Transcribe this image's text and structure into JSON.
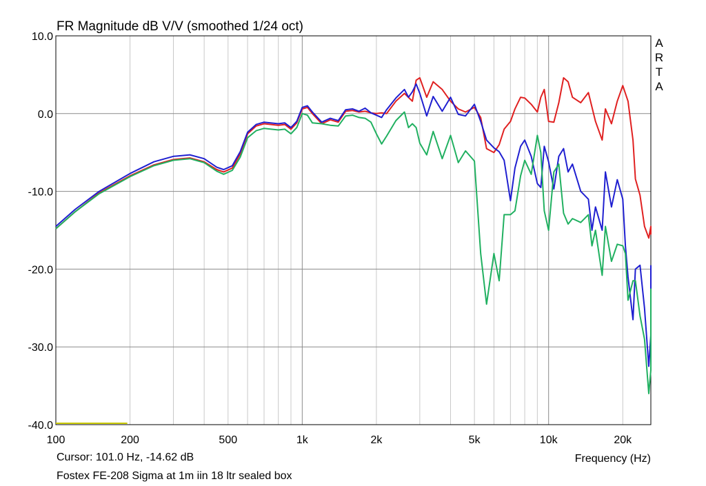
{
  "footer": {
    "cursor": "Cursor: 101.0 Hz, -14.62 dB",
    "description": "Fostex FE-208 Sigma at 1m iin 18 ltr sealed box"
  },
  "chart_data": {
    "type": "line",
    "title": "FR Magnitude dB V/V (smoothed 1/24 oct)",
    "xlabel": "Frequency (Hz)",
    "ylabel": "",
    "watermark": "ARTA",
    "xscale": "log",
    "xlim": [
      100,
      26000
    ],
    "ylim": [
      -40,
      10
    ],
    "grid": true,
    "xticks": [
      {
        "value": 100,
        "label": "100"
      },
      {
        "value": 200,
        "label": "200"
      },
      {
        "value": 500,
        "label": "500"
      },
      {
        "value": 1000,
        "label": "1k"
      },
      {
        "value": 2000,
        "label": "2k"
      },
      {
        "value": 5000,
        "label": "5k"
      },
      {
        "value": 10000,
        "label": "10k"
      },
      {
        "value": 20000,
        "label": "20k"
      }
    ],
    "yticks": [
      {
        "value": 10,
        "label": "10.0"
      },
      {
        "value": 0,
        "label": "0.0"
      },
      {
        "value": -10,
        "label": "-10.0"
      },
      {
        "value": -20,
        "label": "-20.0"
      },
      {
        "value": -30,
        "label": "-30.0"
      },
      {
        "value": -40,
        "label": "-40.0"
      }
    ],
    "cursor_line": {
      "color": "#c8c800",
      "x": [
        100,
        195
      ],
      "y": -40
    },
    "series": [
      {
        "color": "#e02020",
        "points": [
          [
            100,
            -14.8
          ],
          [
            120,
            -12.6
          ],
          [
            150,
            -10.2
          ],
          [
            200,
            -8
          ],
          [
            250,
            -6.6
          ],
          [
            300,
            -5.9
          ],
          [
            350,
            -5.7
          ],
          [
            400,
            -6.2
          ],
          [
            450,
            -7.2
          ],
          [
            480,
            -7.5
          ],
          [
            520,
            -7
          ],
          [
            560,
            -5.2
          ],
          [
            600,
            -2.6
          ],
          [
            650,
            -1.6
          ],
          [
            700,
            -1.3
          ],
          [
            800,
            -1.5
          ],
          [
            850,
            -1.4
          ],
          [
            900,
            -2
          ],
          [
            950,
            -1.2
          ],
          [
            1000,
            0.6
          ],
          [
            1050,
            0.8
          ],
          [
            1100,
            0
          ],
          [
            1200,
            -1.3
          ],
          [
            1300,
            -0.8
          ],
          [
            1400,
            -1.1
          ],
          [
            1500,
            0.3
          ],
          [
            1600,
            0.4
          ],
          [
            1700,
            0.2
          ],
          [
            1800,
            0.3
          ],
          [
            1900,
            0.1
          ],
          [
            2000,
            0
          ],
          [
            2100,
            0.1
          ],
          [
            2200,
            0
          ],
          [
            2400,
            1.6
          ],
          [
            2600,
            2.6
          ],
          [
            2800,
            1.6
          ],
          [
            2900,
            4.3
          ],
          [
            3000,
            4.6
          ],
          [
            3200,
            2.1
          ],
          [
            3400,
            4.1
          ],
          [
            3700,
            3.1
          ],
          [
            4000,
            1.6
          ],
          [
            4300,
            0.6
          ],
          [
            4600,
            0.2
          ],
          [
            5000,
            0.8
          ],
          [
            5300,
            -0.5
          ],
          [
            5600,
            -4.5
          ],
          [
            6000,
            -5
          ],
          [
            6300,
            -4
          ],
          [
            6600,
            -2
          ],
          [
            7000,
            -1
          ],
          [
            7300,
            0.6
          ],
          [
            7700,
            2.1
          ],
          [
            8000,
            2
          ],
          [
            8500,
            1.2
          ],
          [
            9000,
            0.2
          ],
          [
            9300,
            2.1
          ],
          [
            9600,
            3.1
          ],
          [
            10000,
            -1
          ],
          [
            10500,
            -1.1
          ],
          [
            11000,
            1.4
          ],
          [
            11500,
            4.6
          ],
          [
            12000,
            4.1
          ],
          [
            12500,
            2.1
          ],
          [
            13500,
            1.4
          ],
          [
            14500,
            2.7
          ],
          [
            15500,
            -1
          ],
          [
            16500,
            -3.4
          ],
          [
            17000,
            0.6
          ],
          [
            18000,
            -1.3
          ],
          [
            19000,
            1.6
          ],
          [
            20000,
            3.6
          ],
          [
            21000,
            1.6
          ],
          [
            22000,
            -3.4
          ],
          [
            22500,
            -8.4
          ],
          [
            23500,
            -10.5
          ],
          [
            24500,
            -14.5
          ],
          [
            25500,
            -16
          ],
          [
            26500,
            -14.5
          ],
          [
            27500,
            -15.5
          ],
          [
            28500,
            -14.5
          ],
          [
            29500,
            -15.5
          ],
          [
            30000,
            -15
          ]
        ]
      },
      {
        "color": "#1f1fd0",
        "points": [
          [
            100,
            -14.5
          ],
          [
            120,
            -12.3
          ],
          [
            150,
            -10
          ],
          [
            200,
            -7.7
          ],
          [
            250,
            -6.2
          ],
          [
            300,
            -5.5
          ],
          [
            350,
            -5.3
          ],
          [
            400,
            -5.8
          ],
          [
            450,
            -6.9
          ],
          [
            480,
            -7.2
          ],
          [
            520,
            -6.7
          ],
          [
            560,
            -4.9
          ],
          [
            600,
            -2.4
          ],
          [
            650,
            -1.4
          ],
          [
            700,
            -1.1
          ],
          [
            800,
            -1.3
          ],
          [
            850,
            -1.2
          ],
          [
            900,
            -1.8
          ],
          [
            950,
            -1
          ],
          [
            1000,
            0.8
          ],
          [
            1050,
            1
          ],
          [
            1100,
            0.2
          ],
          [
            1200,
            -1.1
          ],
          [
            1300,
            -0.6
          ],
          [
            1400,
            -0.9
          ],
          [
            1500,
            0.5
          ],
          [
            1600,
            0.6
          ],
          [
            1700,
            0.3
          ],
          [
            1800,
            0.7
          ],
          [
            1900,
            0.1
          ],
          [
            2000,
            -0.2
          ],
          [
            2100,
            -0.5
          ],
          [
            2200,
            0.5
          ],
          [
            2400,
            2
          ],
          [
            2600,
            3.1
          ],
          [
            2700,
            2.1
          ],
          [
            2800,
            2.8
          ],
          [
            2900,
            3.8
          ],
          [
            3000,
            2.6
          ],
          [
            3200,
            -0.3
          ],
          [
            3400,
            2.2
          ],
          [
            3700,
            0.3
          ],
          [
            4000,
            2.1
          ],
          [
            4300,
            -0.1
          ],
          [
            4600,
            -0.3
          ],
          [
            5000,
            1.2
          ],
          [
            5300,
            -1
          ],
          [
            5600,
            -3.4
          ],
          [
            6000,
            -4.4
          ],
          [
            6300,
            -4.9
          ],
          [
            6600,
            -6
          ],
          [
            7000,
            -11.2
          ],
          [
            7300,
            -7
          ],
          [
            7700,
            -4.2
          ],
          [
            8000,
            -3.4
          ],
          [
            8500,
            -5.5
          ],
          [
            9000,
            -9
          ],
          [
            9300,
            -9.5
          ],
          [
            9600,
            -4.2
          ],
          [
            10000,
            -6.2
          ],
          [
            10500,
            -9.7
          ],
          [
            11000,
            -5.5
          ],
          [
            11500,
            -4.5
          ],
          [
            12000,
            -7.5
          ],
          [
            12500,
            -6.5
          ],
          [
            13500,
            -10
          ],
          [
            14500,
            -11
          ],
          [
            15000,
            -15
          ],
          [
            15500,
            -12
          ],
          [
            16500,
            -15
          ],
          [
            17000,
            -7.5
          ],
          [
            18000,
            -12
          ],
          [
            19000,
            -8.5
          ],
          [
            20000,
            -11
          ],
          [
            20500,
            -17
          ],
          [
            21000,
            -21
          ],
          [
            22000,
            -26.5
          ],
          [
            22500,
            -20
          ],
          [
            23500,
            -19.5
          ],
          [
            24500,
            -25
          ],
          [
            25500,
            -32.5
          ],
          [
            26500,
            -28.5
          ],
          [
            27500,
            -30.5
          ],
          [
            28500,
            -30
          ],
          [
            29500,
            -21.5
          ],
          [
            30000,
            -19.5
          ]
        ]
      },
      {
        "color": "#20b060",
        "points": [
          [
            100,
            -14.8
          ],
          [
            120,
            -12.6
          ],
          [
            150,
            -10.3
          ],
          [
            200,
            -8.1
          ],
          [
            250,
            -6.7
          ],
          [
            300,
            -6
          ],
          [
            350,
            -5.8
          ],
          [
            400,
            -6.3
          ],
          [
            450,
            -7.4
          ],
          [
            480,
            -7.8
          ],
          [
            520,
            -7.3
          ],
          [
            560,
            -5.6
          ],
          [
            600,
            -3.1
          ],
          [
            650,
            -2.2
          ],
          [
            700,
            -1.9
          ],
          [
            800,
            -2.1
          ],
          [
            850,
            -2
          ],
          [
            900,
            -2.6
          ],
          [
            950,
            -1.8
          ],
          [
            1000,
            0
          ],
          [
            1050,
            -0.2
          ],
          [
            1100,
            -1.2
          ],
          [
            1200,
            -1.3
          ],
          [
            1300,
            -1.5
          ],
          [
            1400,
            -1.6
          ],
          [
            1500,
            -0.3
          ],
          [
            1600,
            -0.2
          ],
          [
            1700,
            -0.5
          ],
          [
            1800,
            -0.6
          ],
          [
            1900,
            -1.1
          ],
          [
            2000,
            -2.6
          ],
          [
            2100,
            -3.9
          ],
          [
            2200,
            -2.9
          ],
          [
            2400,
            -0.9
          ],
          [
            2600,
            0.2
          ],
          [
            2700,
            -1.8
          ],
          [
            2800,
            -1.3
          ],
          [
            2900,
            -1.8
          ],
          [
            3000,
            -3.8
          ],
          [
            3200,
            -5.3
          ],
          [
            3400,
            -2.3
          ],
          [
            3700,
            -5.8
          ],
          [
            4000,
            -2.8
          ],
          [
            4300,
            -6.3
          ],
          [
            4600,
            -4.8
          ],
          [
            5000,
            -6.1
          ],
          [
            5300,
            -18
          ],
          [
            5600,
            -24.5
          ],
          [
            6000,
            -18
          ],
          [
            6300,
            -21.5
          ],
          [
            6600,
            -13
          ],
          [
            7000,
            -13
          ],
          [
            7300,
            -12.5
          ],
          [
            7700,
            -8
          ],
          [
            8000,
            -6
          ],
          [
            8500,
            -7.8
          ],
          [
            9000,
            -2.8
          ],
          [
            9300,
            -5
          ],
          [
            9600,
            -12.5
          ],
          [
            10000,
            -15
          ],
          [
            10500,
            -7.5
          ],
          [
            11000,
            -6.5
          ],
          [
            11500,
            -12.8
          ],
          [
            12000,
            -14.2
          ],
          [
            12500,
            -13.5
          ],
          [
            13500,
            -14
          ],
          [
            14500,
            -13
          ],
          [
            15000,
            -17
          ],
          [
            15500,
            -15
          ],
          [
            16500,
            -20.8
          ],
          [
            17000,
            -14.5
          ],
          [
            18000,
            -19
          ],
          [
            19000,
            -16.8
          ],
          [
            20000,
            -17
          ],
          [
            20500,
            -18
          ],
          [
            21000,
            -24
          ],
          [
            22000,
            -21.5
          ],
          [
            22500,
            -21.5
          ],
          [
            23500,
            -26
          ],
          [
            24500,
            -29
          ],
          [
            25500,
            -36
          ],
          [
            26500,
            -33
          ],
          [
            27500,
            -32
          ],
          [
            28500,
            -30
          ],
          [
            29500,
            -29.8
          ],
          [
            30000,
            -22.5
          ]
        ]
      }
    ]
  }
}
